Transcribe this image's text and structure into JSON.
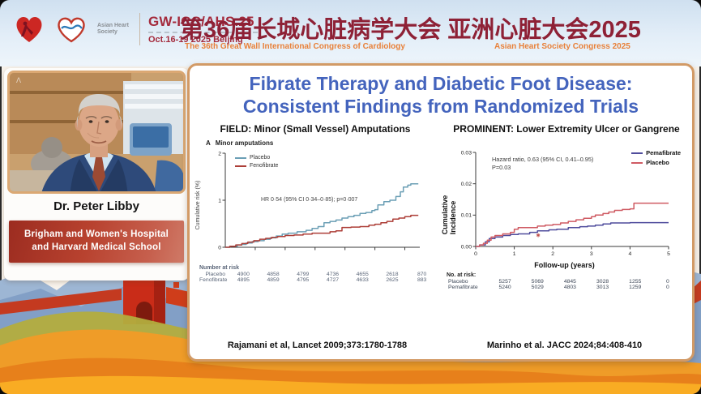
{
  "header": {
    "congress_code": "GW-ICC/AHS.25",
    "date_location": "Oct.16-19 2025 Beijing",
    "society_label": "Asian Heart Society",
    "title_cn": "第36届长城心脏病学大会 亚洲心脏大会2025",
    "subtitle_left": "The 36th Great Wall International Congress of Cardiology",
    "subtitle_right": "Asian Heart Society Congress 2025"
  },
  "speaker": {
    "name": "Dr. Peter Libby",
    "affiliation_line1": "Brigham and Women's Hospital",
    "affiliation_line2": "and Harvard Medical School"
  },
  "slide": {
    "title_line1": "Fibrate Therapy and Diabetic Foot Disease:",
    "title_line2": "Consistent Findings from Randomized Trials",
    "left_header": "FIELD: Minor (Small Vessel) Amputations",
    "right_header": "PROMINENT: Lower Extremity Ulcer or Gangrene",
    "left_citation": "Rajamani et al, Lancet 2009;373:1780-1788",
    "right_citation": "Marinho et al. JACC 2024;84:408-410"
  },
  "chart_data": [
    {
      "id": "field-chart",
      "type": "line",
      "panel_label": "A",
      "title": "Minor amputations",
      "ylabel": "Cumulative risk (%)",
      "xlabel": "",
      "xlim": [
        0,
        6.5
      ],
      "ylim": [
        0,
        2
      ],
      "yticks": [
        0,
        1,
        2
      ],
      "ytick_labels": [
        "0",
        "1",
        "2"
      ],
      "xticks": [
        1,
        2,
        3,
        4,
        5,
        6
      ],
      "xtick_labels": null,
      "grid": false,
      "legend_position": "top-left-inside",
      "annotation": "HR 0·54 (95% CI 0·34–0·85); p=0·007",
      "series": [
        {
          "name": "Placebo",
          "color": "#6b9fb5",
          "points": [
            [
              0,
              0
            ],
            [
              0.15,
              0.02
            ],
            [
              0.4,
              0.05
            ],
            [
              0.55,
              0.06
            ],
            [
              0.7,
              0.09
            ],
            [
              0.9,
              0.12
            ],
            [
              1.1,
              0.14
            ],
            [
              1.3,
              0.17
            ],
            [
              1.5,
              0.2
            ],
            [
              1.7,
              0.24
            ],
            [
              1.9,
              0.28
            ],
            [
              2.1,
              0.3
            ],
            [
              2.4,
              0.33
            ],
            [
              2.7,
              0.36
            ],
            [
              2.9,
              0.4
            ],
            [
              3.1,
              0.44
            ],
            [
              3.3,
              0.52
            ],
            [
              3.5,
              0.55
            ],
            [
              3.7,
              0.58
            ],
            [
              3.9,
              0.62
            ],
            [
              4.1,
              0.65
            ],
            [
              4.3,
              0.68
            ],
            [
              4.5,
              0.72
            ],
            [
              4.7,
              0.74
            ],
            [
              4.9,
              0.78
            ],
            [
              5.0,
              0.8
            ],
            [
              5.1,
              0.9
            ],
            [
              5.3,
              0.97
            ],
            [
              5.5,
              1.0
            ],
            [
              5.7,
              1.08
            ],
            [
              5.85,
              1.18
            ],
            [
              5.95,
              1.28
            ],
            [
              6.1,
              1.32
            ],
            [
              6.2,
              1.35
            ],
            [
              6.45,
              1.35
            ]
          ]
        },
        {
          "name": "Fenofibrate",
          "color": "#ad3f38",
          "points": [
            [
              0,
              0
            ],
            [
              0.15,
              0.02
            ],
            [
              0.35,
              0.05
            ],
            [
              0.55,
              0.08
            ],
            [
              0.75,
              0.11
            ],
            [
              0.95,
              0.14
            ],
            [
              1.15,
              0.17
            ],
            [
              1.35,
              0.19
            ],
            [
              1.55,
              0.21
            ],
            [
              1.75,
              0.23
            ],
            [
              2.0,
              0.25
            ],
            [
              2.3,
              0.26
            ],
            [
              2.6,
              0.28
            ],
            [
              2.9,
              0.3
            ],
            [
              3.2,
              0.3
            ],
            [
              3.5,
              0.33
            ],
            [
              3.7,
              0.35
            ],
            [
              3.9,
              0.42
            ],
            [
              4.2,
              0.43
            ],
            [
              4.5,
              0.44
            ],
            [
              4.8,
              0.47
            ],
            [
              5.0,
              0.49
            ],
            [
              5.2,
              0.52
            ],
            [
              5.4,
              0.55
            ],
            [
              5.6,
              0.6
            ],
            [
              5.8,
              0.62
            ],
            [
              6.0,
              0.65
            ],
            [
              6.2,
              0.68
            ],
            [
              6.45,
              0.68
            ]
          ]
        }
      ],
      "number_at_risk": {
        "header": "Number at risk",
        "rows": [
          {
            "label": "Placebo",
            "values": [
              "4900",
              "4858",
              "4799",
              "4736",
              "4655",
              "2618",
              "870"
            ]
          },
          {
            "label": "Fenofibrate",
            "values": [
              "4895",
              "4859",
              "4795",
              "4727",
              "4633",
              "2625",
              "883"
            ]
          }
        ]
      }
    },
    {
      "id": "prominent-chart",
      "type": "line",
      "ylabel": "Cumulative Incidence",
      "xlabel": "Follow-up (years)",
      "xlim": [
        0,
        5
      ],
      "ylim": [
        0,
        0.03
      ],
      "yticks": [
        0,
        0.01,
        0.02,
        0.03
      ],
      "ytick_labels": [
        "0.00",
        "0.01",
        "0.02",
        "0.03"
      ],
      "xticks": [
        0,
        1,
        2,
        3,
        4,
        5
      ],
      "xtick_labels": [
        "0",
        "1",
        "2",
        "3",
        "4",
        "5"
      ],
      "grid": false,
      "legend_position": "top-right-inside",
      "annotation_line1": "Hazard ratio, 0.63 (95% CI, 0.41–0.95)",
      "annotation_line2": "P=0.03",
      "marker": {
        "x": 1.62,
        "y": 0.0036,
        "symbol": "✱",
        "color": "#c0504d"
      },
      "series": [
        {
          "name": "Pemafibrate",
          "color": "#4f4c9c",
          "points": [
            [
              0,
              0
            ],
            [
              0.1,
              0.0005
            ],
            [
              0.25,
              0.0015
            ],
            [
              0.35,
              0.0025
            ],
            [
              0.5,
              0.003
            ],
            [
              0.7,
              0.0035
            ],
            [
              0.9,
              0.0038
            ],
            [
              1.1,
              0.004
            ],
            [
              1.4,
              0.0045
            ],
            [
              1.6,
              0.005
            ],
            [
              1.9,
              0.0053
            ],
            [
              2.1,
              0.0055
            ],
            [
              2.4,
              0.006
            ],
            [
              2.7,
              0.0063
            ],
            [
              2.9,
              0.0065
            ],
            [
              3.1,
              0.0068
            ],
            [
              3.3,
              0.0072
            ],
            [
              3.5,
              0.0075
            ],
            [
              4.0,
              0.0076
            ],
            [
              5.0,
              0.0076
            ]
          ]
        },
        {
          "name": "Placebo",
          "color": "#cf5b63",
          "points": [
            [
              0,
              0
            ],
            [
              0.1,
              0.0005
            ],
            [
              0.2,
              0.001
            ],
            [
              0.3,
              0.002
            ],
            [
              0.4,
              0.003
            ],
            [
              0.5,
              0.0035
            ],
            [
              0.7,
              0.004
            ],
            [
              0.9,
              0.0045
            ],
            [
              1.0,
              0.0055
            ],
            [
              1.1,
              0.006
            ],
            [
              1.4,
              0.006
            ],
            [
              1.6,
              0.0065
            ],
            [
              1.8,
              0.0068
            ],
            [
              2.0,
              0.007
            ],
            [
              2.2,
              0.0075
            ],
            [
              2.4,
              0.008
            ],
            [
              2.6,
              0.0085
            ],
            [
              2.8,
              0.009
            ],
            [
              3.0,
              0.0095
            ],
            [
              3.1,
              0.01
            ],
            [
              3.3,
              0.0105
            ],
            [
              3.45,
              0.011
            ],
            [
              3.6,
              0.0115
            ],
            [
              3.8,
              0.0118
            ],
            [
              4.0,
              0.012
            ],
            [
              4.1,
              0.0138
            ],
            [
              4.6,
              0.0138
            ],
            [
              5.0,
              0.0138
            ]
          ]
        }
      ],
      "number_at_risk": {
        "header": "No. at risk:",
        "rows": [
          {
            "label": "Placebo",
            "values": [
              "5257",
              "5069",
              "4845",
              "3028",
              "1255",
              "0"
            ]
          },
          {
            "label": "Pemafibrate",
            "values": [
              "5240",
              "5029",
              "4803",
              "3013",
              "1259",
              "0"
            ]
          }
        ]
      }
    }
  ]
}
